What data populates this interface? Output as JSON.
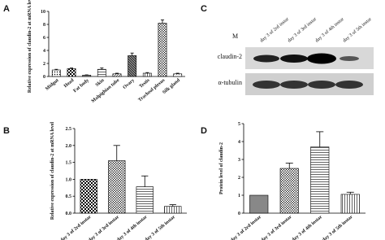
{
  "panel_labels": [
    "A",
    "B",
    "C",
    "D"
  ],
  "blot": {
    "marker": "M",
    "lanes": [
      "day 3 of 2rd instar",
      "day 3 of 3rd instar",
      "day 3 of 4th instar",
      "day 3 of 5th instar"
    ],
    "rows": [
      "claudin-2",
      "α-tubulin"
    ]
  },
  "chart_data": [
    {
      "type": "bar",
      "ylabel": "Relative expression of claudin-2 at mRNA level",
      "categories": [
        "Midgut",
        "Head",
        "Fat body",
        "Skin",
        "Malpighian tube",
        "Ovary",
        "Testis",
        "Tracheal plexus",
        "Silk gland"
      ],
      "values": [
        1.0,
        1.2,
        0.2,
        1.1,
        0.4,
        3.2,
        0.5,
        8.2,
        0.4
      ],
      "errors": [
        0.1,
        0.1,
        0.05,
        0.2,
        0.1,
        0.4,
        0.1,
        0.5,
        0.1
      ],
      "ylim": [
        0,
        10
      ],
      "yticks": [
        0,
        2,
        4,
        6,
        8,
        10
      ]
    },
    {
      "type": "bar",
      "ylabel": "Relative expression of claudin-2 at mRNA level",
      "categories": [
        "day 3 of 2rd instar",
        "day 3 of 3rd instar",
        "day 3 of 4th instar",
        "day 3 of 5th instar"
      ],
      "values": [
        1.0,
        1.55,
        0.78,
        0.2
      ],
      "errors": [
        0,
        0.45,
        0.32,
        0.05
      ],
      "ylim": [
        0,
        2.5
      ],
      "yticks": [
        {
          "value": 0,
          "label": "0.0"
        },
        {
          "value": 0.5,
          "label": "0.5"
        },
        {
          "value": 1,
          "label": "1.0"
        },
        {
          "value": 1.5,
          "label": "1.5"
        },
        {
          "value": 2,
          "label": "2.0"
        },
        {
          "value": 2.5,
          "label": "2.5"
        }
      ]
    },
    {
      "type": "bar",
      "ylabel": "Protein level of claudin-2",
      "categories": [
        "day 3 of 2rd instar",
        "day 3 of 3rd instar",
        "day 3 of 4th instar",
        "day 3 of 5th instar"
      ],
      "values": [
        1.0,
        2.5,
        3.7,
        1.05
      ],
      "errors": [
        0,
        0.3,
        0.85,
        0.12
      ],
      "ylim": [
        0,
        5
      ],
      "yticks": [
        0,
        1,
        2,
        3,
        4,
        5
      ]
    }
  ]
}
